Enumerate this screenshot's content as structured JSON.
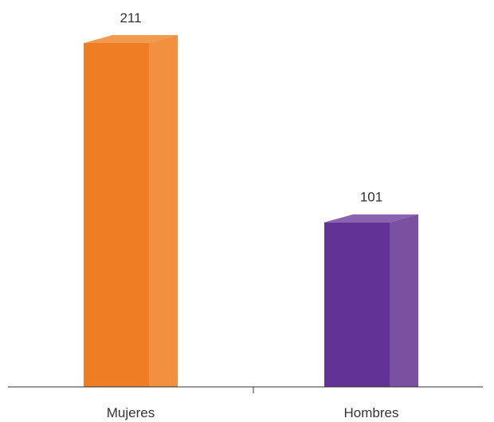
{
  "chart_data": {
    "type": "bar",
    "categories": [
      "Mujeres",
      "Hombres"
    ],
    "values": [
      211,
      101
    ],
    "value_labels": [
      "211",
      "101"
    ],
    "colors": {
      "Mujeres": {
        "front": "#EE7D23",
        "side": "#F19140",
        "top": "#F29A4E"
      },
      "Hombres": {
        "front": "#633296",
        "side": "#7B50A3",
        "top": "#8B62B0"
      }
    },
    "axis_color": "#333333",
    "title": "",
    "xlabel": "",
    "ylabel": "",
    "grid": false,
    "legend": "none"
  }
}
